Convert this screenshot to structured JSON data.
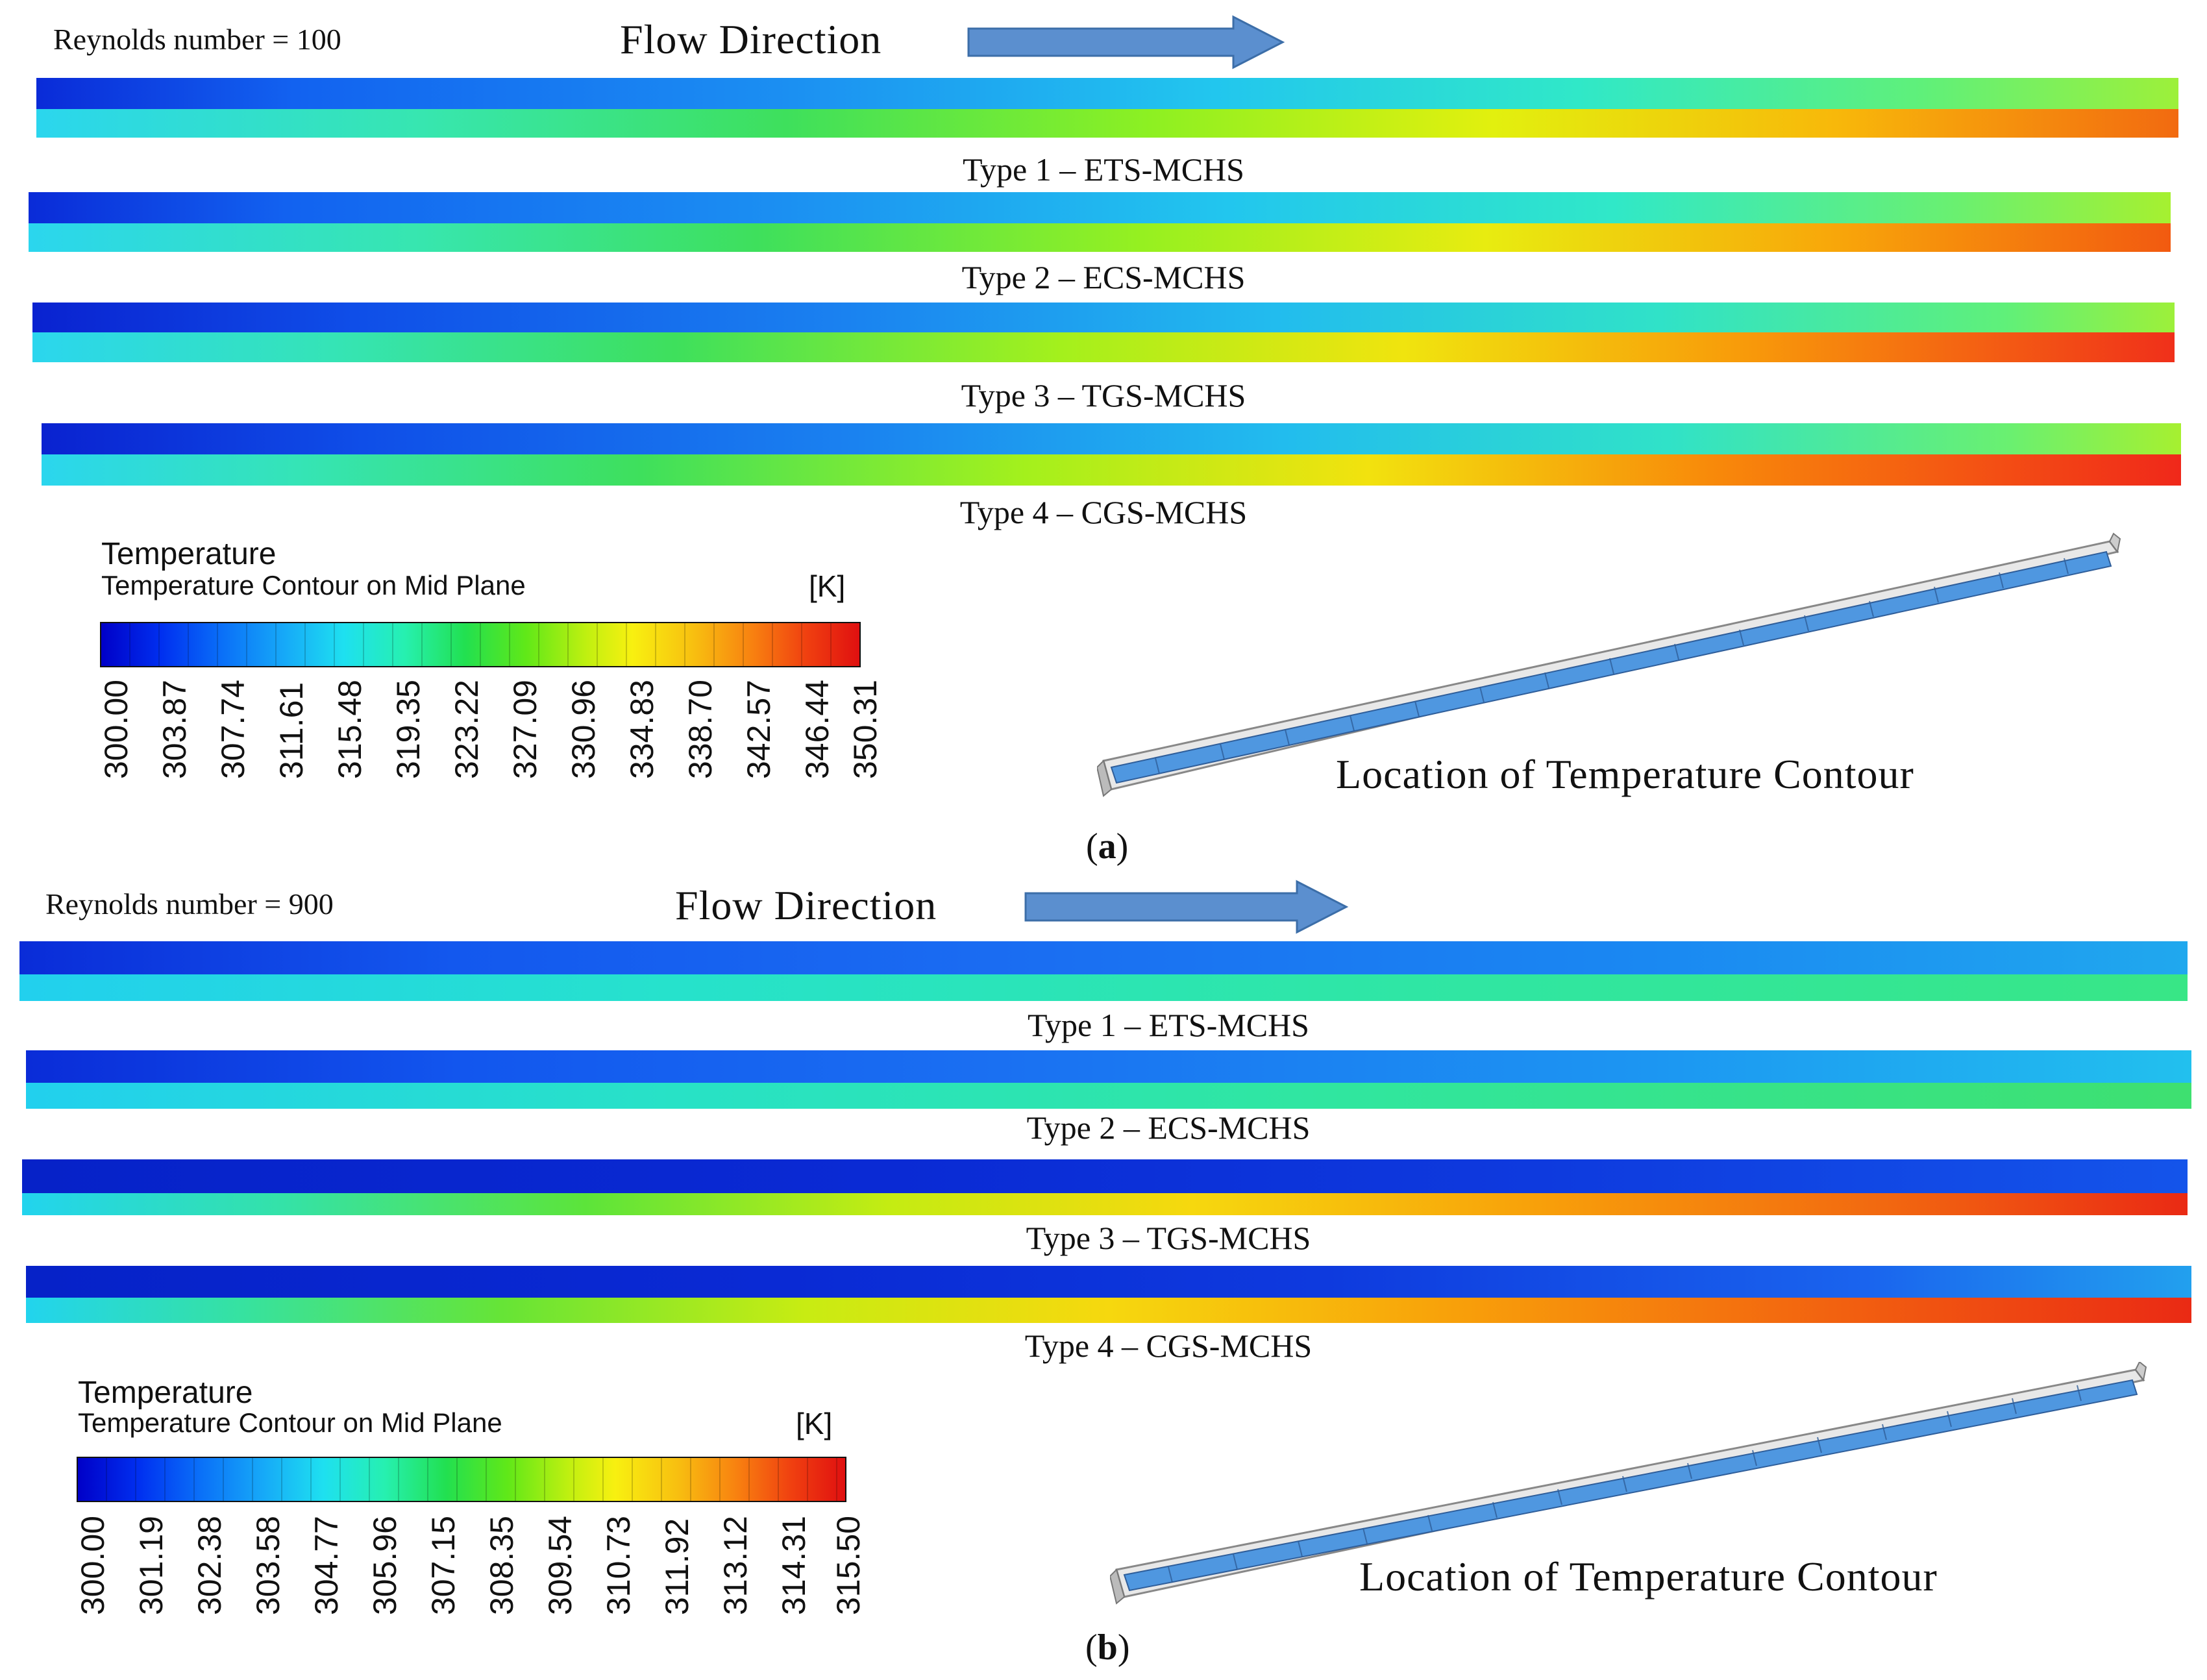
{
  "panel_a": {
    "label_open": "(",
    "label_letter": "a",
    "label_close": ")",
    "reynolds": "Reynolds number = 100",
    "flow_direction": "Flow Direction",
    "channels": [
      {
        "caption": "Type 1 – ETS-MCHS"
      },
      {
        "caption": "Type 2 – ECS-MCHS"
      },
      {
        "caption": "Type 3 – TGS-MCHS"
      },
      {
        "caption": "Type 4 – CGS-MCHS"
      }
    ],
    "legend": {
      "title": "Temperature",
      "subtitle": "Temperature Contour on Mid Plane",
      "unit": "[K]",
      "ticks": [
        "300.00",
        "303.87",
        "307.74",
        "311.61",
        "315.48",
        "319.35",
        "323.22",
        "327.09",
        "330.96",
        "334.83",
        "338.70",
        "342.57",
        "346.44",
        "350.31"
      ]
    },
    "location_label": "Location of Temperature Contour"
  },
  "panel_b": {
    "label_open": "(",
    "label_letter": "b",
    "label_close": ")",
    "reynolds": "Reynolds number = 900",
    "flow_direction": "Flow Direction",
    "channels": [
      {
        "caption": "Type 1 – ETS-MCHS"
      },
      {
        "caption": "Type 2 – ECS-MCHS"
      },
      {
        "caption": "Type 3 – TGS-MCHS"
      },
      {
        "caption": "Type 4 – CGS-MCHS"
      }
    ],
    "legend": {
      "title": "Temperature",
      "subtitle": "Temperature Contour on Mid Plane",
      "unit": "[K]",
      "ticks": [
        "300.00",
        "301.19",
        "302.38",
        "303.58",
        "304.77",
        "305.96",
        "307.15",
        "308.35",
        "309.54",
        "310.73",
        "311.92",
        "313.12",
        "314.31",
        "315.50"
      ]
    },
    "location_label": "Location of Temperature Contour"
  },
  "colors": {
    "arrow_fill": "#5b8fcf",
    "arrow_stroke": "#3c6ea8",
    "channel_3d": "#4f97e0"
  }
}
